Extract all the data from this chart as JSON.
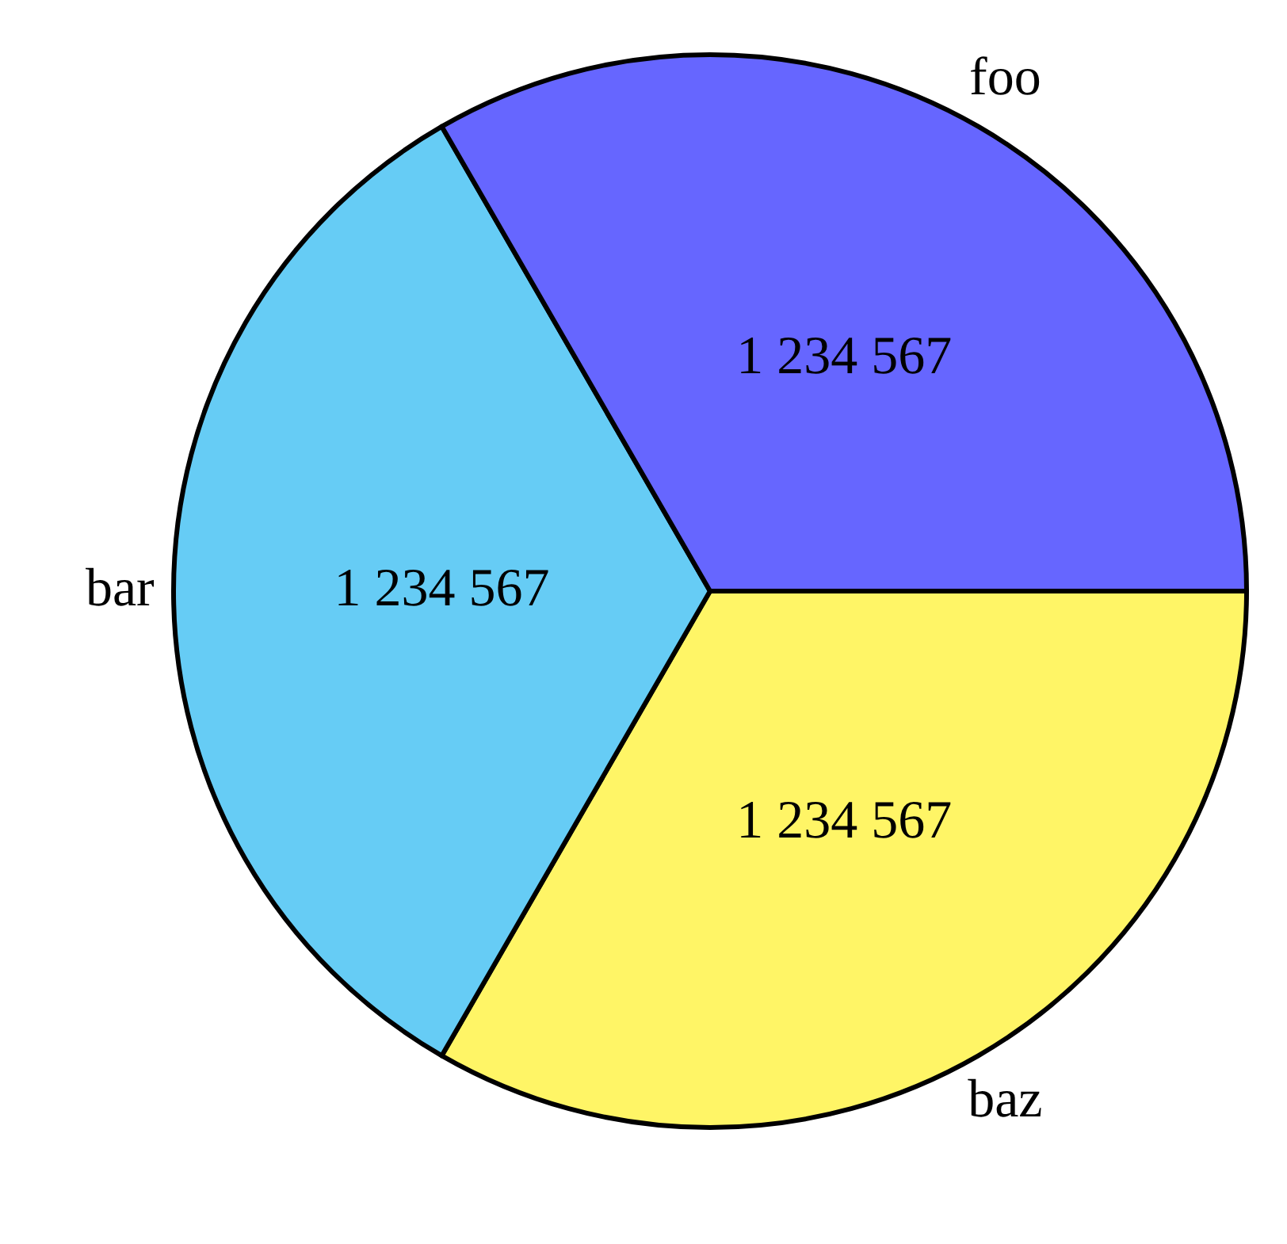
{
  "chart_data": {
    "type": "pie",
    "categories": [
      "foo",
      "bar",
      "baz"
    ],
    "values": [
      1234567,
      1234567,
      1234567
    ],
    "colors": [
      "#6666ff",
      "#66ccf5",
      "#fff566"
    ],
    "value_labels": [
      "1 234 567",
      "1 234 567",
      "1 234 567"
    ],
    "legend": false
  }
}
